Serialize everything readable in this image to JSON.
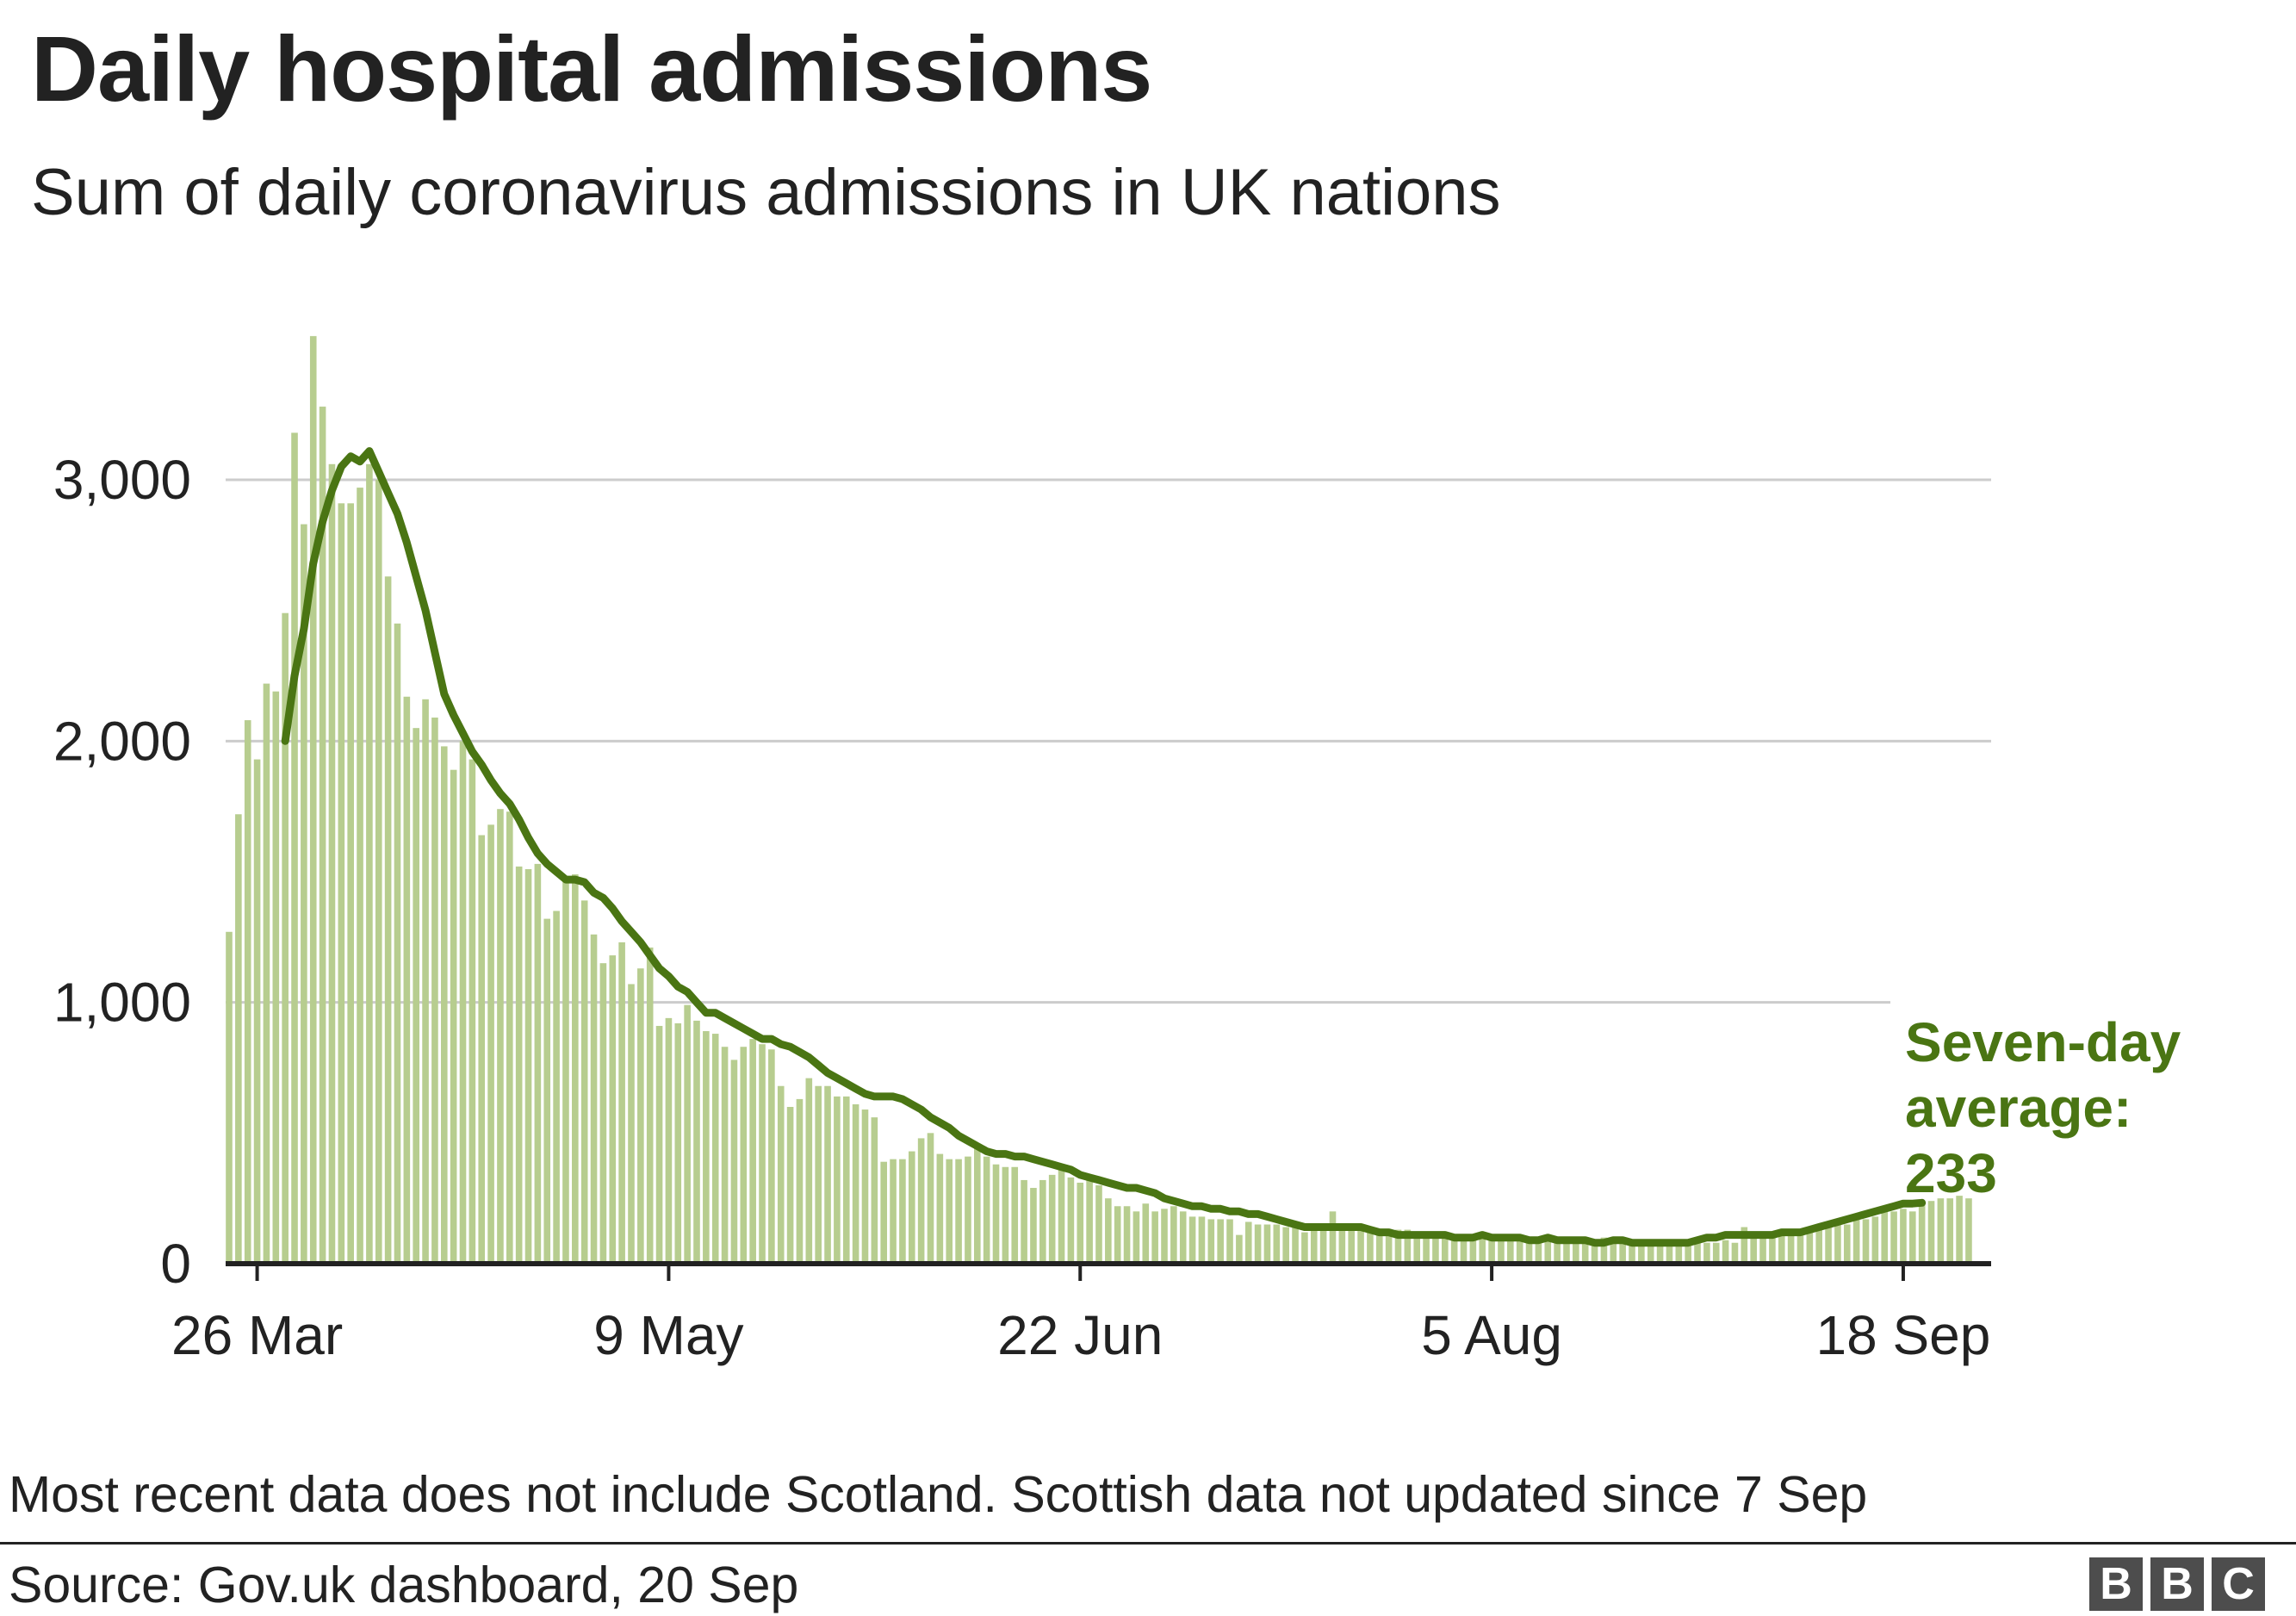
{
  "header": {
    "title": "Daily hospital admissions",
    "subtitle": "Sum of daily coronavirus admissions in UK nations"
  },
  "footer": {
    "note": "Most recent data does not include Scotland. Scottish data not updated since 7 Sep",
    "source": "Source: Gov.uk dashboard, 20 Sep",
    "logo_letters": [
      "B",
      "B",
      "C"
    ]
  },
  "colors": {
    "bar": "#b7cd8f",
    "line": "#4a7513",
    "grid": "#cccccc",
    "axis": "#222222",
    "text": "#222222"
  },
  "chart_data": {
    "type": "bar",
    "x_start_date": "2020-03-23",
    "x_ticks": [
      {
        "label": "26 Mar",
        "day": 3
      },
      {
        "label": "9 May",
        "day": 47
      },
      {
        "label": "22 Jun",
        "day": 91
      },
      {
        "label": "5 Aug",
        "day": 135
      },
      {
        "label": "18 Sep",
        "day": 179
      }
    ],
    "y_ticks": [
      0,
      1000,
      2000,
      3000
    ],
    "ylim": [
      0,
      3600
    ],
    "series": [
      {
        "type": "bar",
        "values": [
          1270,
          1720,
          2080,
          1930,
          2220,
          2190,
          2490,
          3180,
          2830,
          3550,
          3280,
          3060,
          2910,
          2910,
          2970,
          3060,
          3000,
          2630,
          2450,
          2170,
          2050,
          2160,
          2090,
          1980,
          1890,
          2000,
          1930,
          1640,
          1680,
          1740,
          1730,
          1520,
          1510,
          1530,
          1320,
          1350,
          1470,
          1490,
          1390,
          1260,
          1150,
          1180,
          1230,
          1070,
          1130,
          1210,
          910,
          940,
          920,
          990,
          930,
          890,
          880,
          830,
          780,
          830,
          860,
          840,
          820,
          680,
          600,
          630,
          710,
          680,
          680,
          640,
          640,
          610,
          590,
          560,
          390,
          400,
          400,
          430,
          480,
          500,
          420,
          400,
          400,
          410,
          440,
          410,
          380,
          370,
          370,
          320,
          290,
          320,
          340,
          360,
          330,
          310,
          340,
          300,
          250,
          220,
          220,
          200,
          230,
          200,
          210,
          220,
          200,
          180,
          180,
          170,
          170,
          170,
          110,
          160,
          150,
          150,
          150,
          140,
          150,
          120,
          130,
          140,
          200,
          130,
          130,
          140,
          120,
          130,
          120,
          130,
          130,
          110,
          110,
          120,
          100,
          100,
          100,
          110,
          120,
          110,
          100,
          100,
          110,
          100,
          90,
          100,
          90,
          100,
          90,
          80,
          90,
          100,
          90,
          100,
          90,
          80,
          80,
          90,
          80,
          80,
          90,
          90,
          80,
          80,
          90,
          80,
          140,
          120,
          120,
          120,
          120,
          110,
          120,
          120,
          130,
          140,
          150,
          150,
          170,
          170,
          180,
          200,
          200,
          210,
          200,
          230,
          240,
          250,
          250,
          260,
          250
        ]
      },
      {
        "type": "line",
        "name": "Seven-day average",
        "start_index": 6,
        "values": [
          2000,
          2250,
          2430,
          2680,
          2840,
          2960,
          3050,
          3090,
          3070,
          3110,
          3030,
          2950,
          2870,
          2760,
          2630,
          2500,
          2340,
          2180,
          2100,
          2030,
          1960,
          1910,
          1850,
          1800,
          1760,
          1700,
          1630,
          1570,
          1530,
          1500,
          1470,
          1470,
          1460,
          1420,
          1400,
          1360,
          1310,
          1270,
          1230,
          1180,
          1130,
          1100,
          1060,
          1040,
          1000,
          960,
          960,
          940,
          920,
          900,
          880,
          860,
          860,
          840,
          830,
          810,
          790,
          760,
          730,
          710,
          690,
          670,
          650,
          640,
          640,
          640,
          630,
          610,
          590,
          560,
          540,
          520,
          490,
          470,
          450,
          430,
          420,
          420,
          410,
          410,
          400,
          390,
          380,
          370,
          360,
          340,
          330,
          320,
          310,
          300,
          290,
          290,
          280,
          270,
          250,
          240,
          230,
          220,
          220,
          210,
          210,
          200,
          200,
          190,
          190,
          180,
          170,
          160,
          150,
          140,
          140,
          140,
          140,
          140,
          140,
          140,
          130,
          120,
          120,
          110,
          110,
          110,
          110,
          110,
          110,
          100,
          100,
          100,
          110,
          100,
          100,
          100,
          100,
          90,
          90,
          100,
          90,
          90,
          90,
          90,
          80,
          80,
          90,
          90,
          80,
          80,
          80,
          80,
          80,
          80,
          80,
          90,
          100,
          100,
          110,
          110,
          110,
          110,
          110,
          110,
          120,
          120,
          120,
          130,
          140,
          150,
          160,
          170,
          180,
          190,
          200,
          210,
          220,
          230,
          230,
          233
        ]
      }
    ],
    "annotation": {
      "lines": [
        "Seven-day",
        "average:",
        "233"
      ]
    }
  }
}
